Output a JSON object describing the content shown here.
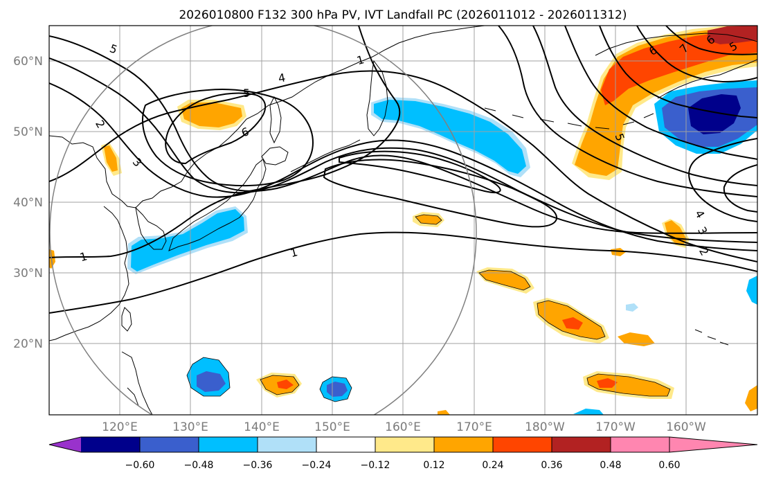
{
  "title": "2026010800 F132 300 hPa PV, IVT Landfall PC (2026011012 - 2026011312)",
  "lon_labels": [
    "120°E",
    "130°E",
    "140°E",
    "150°E",
    "160°E",
    "170°E",
    "180°W",
    "170°W",
    "160°W"
  ],
  "lat_labels": [
    "60°N",
    "50°N",
    "40°N",
    "30°N",
    "20°N"
  ],
  "colorbar": {
    "tick_labels": [
      "−0.60",
      "−0.48",
      "−0.36",
      "−0.24",
      "−0.12",
      "0.12",
      "0.24",
      "0.36",
      "0.48",
      "0.60"
    ],
    "colors": [
      "#9932cc",
      "#00008b",
      "#3a5fcd",
      "#00bfff",
      "#b0e0f8",
      "#ffffff",
      "#ffe98a",
      "#ffa500",
      "#ff4500",
      "#b22222",
      "#ff86b0"
    ]
  },
  "contour_labels": [
    "5",
    "4",
    "1",
    "5",
    "6",
    "2",
    "3",
    "1",
    "1",
    "7",
    "6",
    "5",
    "6",
    "5",
    "4",
    "3",
    "2"
  ],
  "chart_data": {
    "type": "contour_map",
    "projection": "PlateCarree",
    "lon_range": [
      110,
      210
    ],
    "lat_range": [
      10,
      65
    ],
    "filled_field": "IVT Landfall PC (shaded)",
    "contour_field": "300 hPa PV (black lines, PVU)",
    "contour_levels": [
      1,
      2,
      3,
      4,
      5,
      6,
      7
    ],
    "color_levels": [
      -0.6,
      -0.48,
      -0.36,
      -0.24,
      -0.12,
      0.12,
      0.24,
      0.36,
      0.48,
      0.6
    ]
  }
}
